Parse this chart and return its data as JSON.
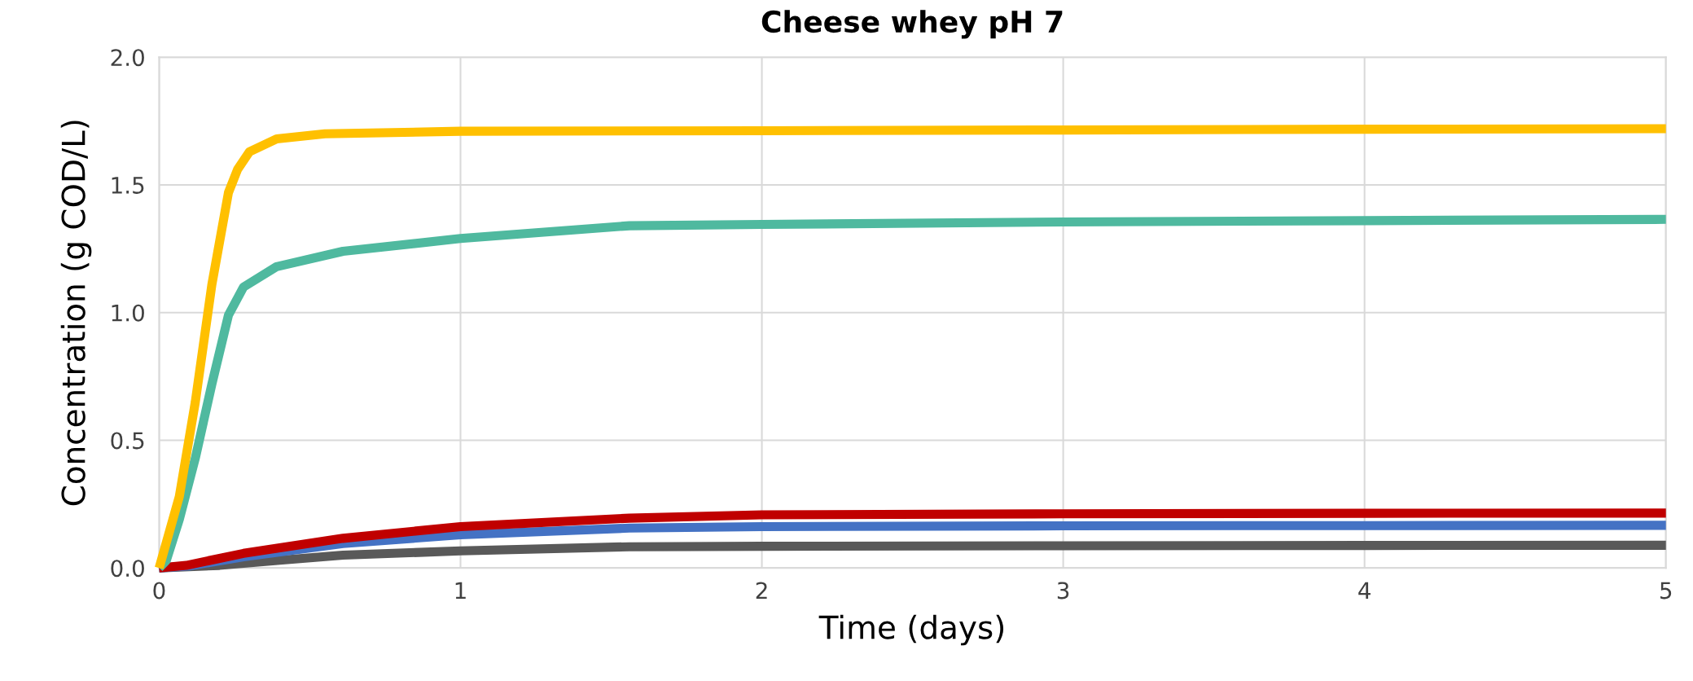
{
  "chart_data": {
    "type": "line",
    "title": "Cheese whey pH 7",
    "xlabel": "Time (days)",
    "ylabel": "Concentration (g COD/L)",
    "xlim": [
      0,
      5
    ],
    "ylim": [
      0,
      2
    ],
    "xticks": [
      0,
      1,
      2,
      3,
      4,
      5
    ],
    "yticks": [
      {
        "value": 0,
        "label": "0.0"
      },
      {
        "value": 0.5,
        "label": "0.5"
      },
      {
        "value": 1,
        "label": "1.0"
      },
      {
        "value": 1.5,
        "label": "1.5"
      },
      {
        "value": 2,
        "label": "2.0"
      }
    ],
    "grid": true,
    "marker": "none",
    "line_style": "solid",
    "series": [
      {
        "color": "#595959",
        "x": [
          0,
          0.2,
          0.4,
          0.61,
          1,
          1.56,
          2,
          3,
          4,
          5
        ],
        "values": [
          0,
          0.01,
          0.03,
          0.05,
          0.067,
          0.083,
          0.085,
          0.087,
          0.088,
          0.089
        ]
      },
      {
        "color": "#4472c4",
        "x": [
          0,
          0.1,
          0.28,
          0.61,
          1,
          1.56,
          2,
          3,
          4,
          5
        ],
        "values": [
          0,
          0.008,
          0.044,
          0.096,
          0.13,
          0.156,
          0.162,
          0.165,
          0.166,
          0.167
        ]
      },
      {
        "color": "#c00000",
        "x": [
          0,
          0.09,
          0.28,
          0.61,
          1,
          1.56,
          2,
          3,
          4,
          5
        ],
        "values": [
          0,
          0.01,
          0.057,
          0.116,
          0.162,
          0.195,
          0.208,
          0.212,
          0.214,
          0.215
        ]
      },
      {
        "color": "#4fb99f",
        "x": [
          0,
          0.024,
          0.067,
          0.12,
          0.175,
          0.23,
          0.28,
          0.39,
          0.61,
          1,
          1.56,
          2,
          3,
          4,
          5
        ],
        "values": [
          0,
          0.03,
          0.19,
          0.43,
          0.72,
          0.99,
          1.1,
          1.18,
          1.24,
          1.29,
          1.34,
          1.345,
          1.355,
          1.36,
          1.365
        ]
      },
      {
        "color": "#ffc000",
        "x": [
          0,
          0.067,
          0.12,
          0.175,
          0.23,
          0.26,
          0.3,
          0.39,
          0.55,
          1,
          2,
          3,
          4,
          5
        ],
        "values": [
          0,
          0.28,
          0.65,
          1.11,
          1.47,
          1.56,
          1.63,
          1.68,
          1.7,
          1.71,
          1.712,
          1.715,
          1.718,
          1.72
        ]
      }
    ]
  }
}
